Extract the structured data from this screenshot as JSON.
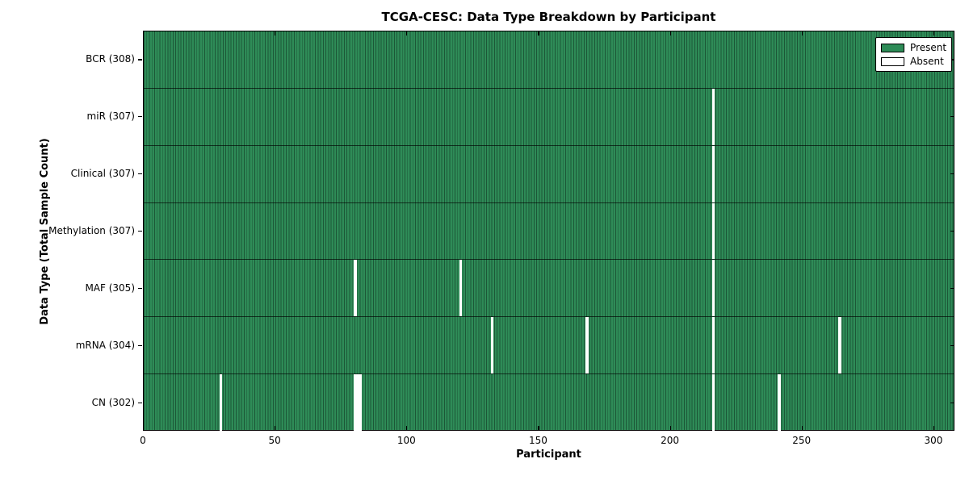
{
  "chart_data": {
    "type": "heatmap",
    "title": "TCGA-CESC: Data Type Breakdown by Participant",
    "xlabel": "Participant",
    "ylabel": "Data Type (Total Sample Count)",
    "x_ticks": [
      0,
      50,
      100,
      150,
      200,
      250,
      300
    ],
    "x_range": [
      0,
      308
    ],
    "total_participants": 308,
    "grid": false,
    "legend": {
      "position": "upper right",
      "entries": [
        {
          "label": "Present",
          "color": "#2e8b57"
        },
        {
          "label": "Absent",
          "color": "#ffffff"
        }
      ]
    },
    "rows": [
      {
        "name": "BCR",
        "label": "BCR (308)",
        "total": 308,
        "absent_participants": []
      },
      {
        "name": "miR",
        "label": "miR (307)",
        "total": 307,
        "absent_participants": [
          216
        ]
      },
      {
        "name": "Clinical",
        "label": "Clinical (307)",
        "total": 307,
        "absent_participants": [
          216
        ]
      },
      {
        "name": "Methylation",
        "label": "Methylation (307)",
        "total": 307,
        "absent_participants": [
          216
        ]
      },
      {
        "name": "MAF",
        "label": "MAF (305)",
        "total": 305,
        "absent_participants": [
          80,
          120,
          216
        ]
      },
      {
        "name": "mRNA",
        "label": "mRNA (304)",
        "total": 304,
        "absent_participants": [
          132,
          168,
          216,
          264
        ]
      },
      {
        "name": "CN",
        "label": "CN (302)",
        "total": 302,
        "absent_participants": [
          29,
          80,
          81,
          82,
          216,
          241
        ]
      }
    ],
    "colors": {
      "present": "#2e8b57",
      "bar_edge": "#1c5737",
      "absent": "#ffffff",
      "row_divider": "#000000",
      "axis": "#000000"
    }
  }
}
